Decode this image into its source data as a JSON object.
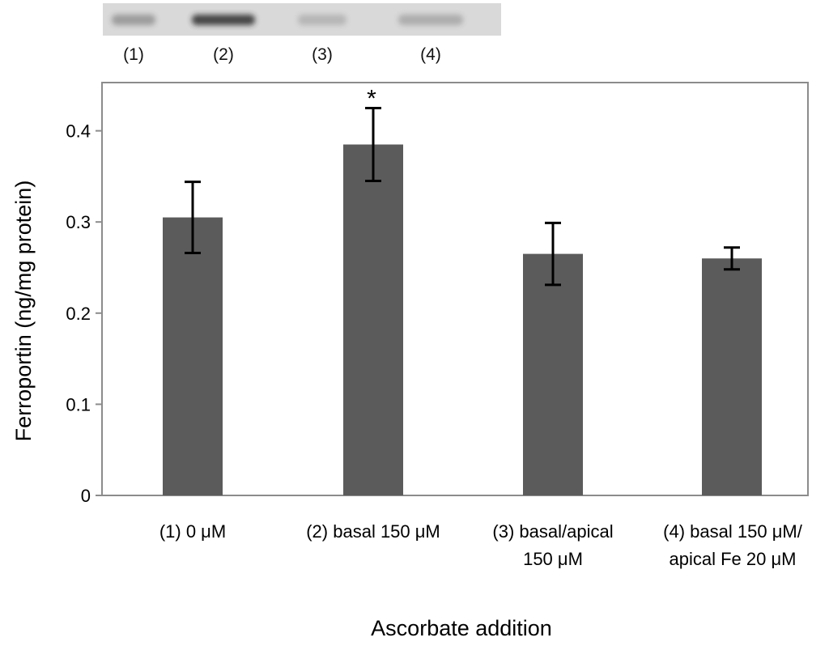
{
  "chart_data": {
    "type": "bar",
    "xlabel": "Ascorbate addition",
    "ylabel": "Ferroportin (ng/mg protein)",
    "ylim": [
      0,
      0.45
    ],
    "yticks": [
      0,
      0.1,
      0.2,
      0.3,
      0.4
    ],
    "ytick_labels": [
      "0",
      "0.1",
      "0.2",
      "0.3",
      "0.4"
    ],
    "grid": false,
    "categories": [
      [
        "(1) 0 μM"
      ],
      [
        "(2) basal 150 μM"
      ],
      [
        "(3) basal/apical",
        "150 μM"
      ],
      [
        "(4) basal 150 μM/",
        "apical Fe 20 μM"
      ]
    ],
    "values": [
      0.305,
      0.385,
      0.265,
      0.26
    ],
    "errors": [
      0.039,
      0.04,
      0.034,
      0.012
    ],
    "annotations": [
      "",
      "*",
      "",
      ""
    ],
    "bar_color": "#5b5b5b",
    "frame_color": "#8c8c8c",
    "blot": {
      "lane_labels": [
        "(1)",
        "(2)",
        "(3)",
        "(4)"
      ],
      "band_intensity": [
        0.35,
        0.85,
        0.2,
        0.25
      ],
      "membrane_color": "#d9d9d9"
    }
  }
}
